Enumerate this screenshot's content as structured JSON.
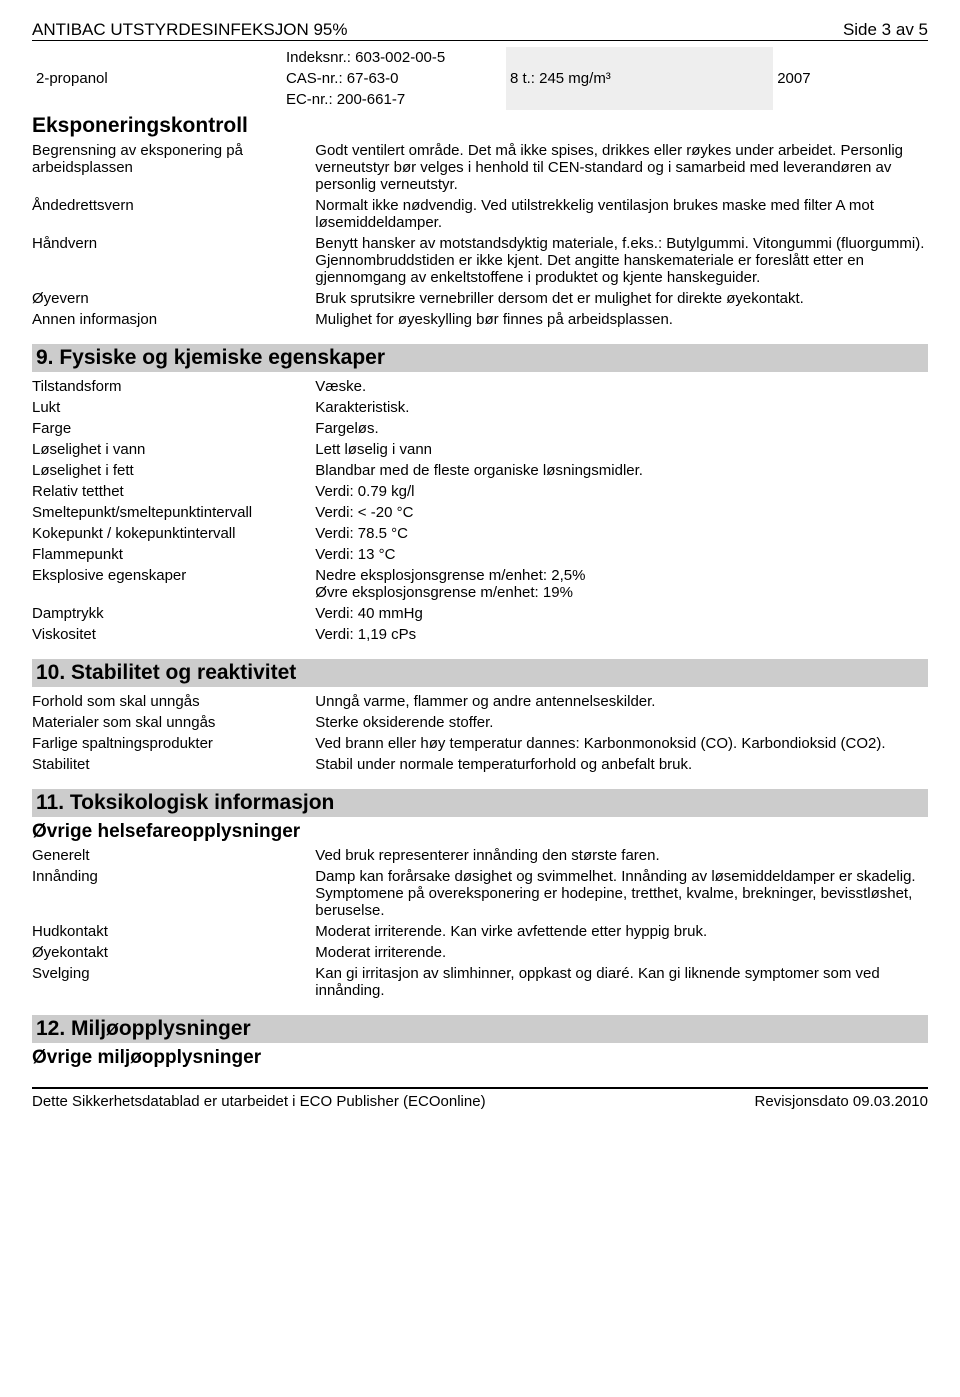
{
  "header": {
    "title": "ANTIBAC UTSTYRDESINFEKSJON 95%",
    "page": "Side 3 av 5"
  },
  "chemical_row": {
    "name": "2-propanol",
    "ids": [
      "Indeksnr.: 603-002-00-5",
      "CAS-nr.: 67-63-0",
      "EC-nr.: 200-661-7"
    ],
    "limit": "8 t.: 245 mg/m³",
    "year": "2007"
  },
  "exposure": {
    "heading": "Eksponeringskontroll",
    "rows": [
      {
        "label": "Begrensning av eksponering på arbeidsplassen",
        "value": "Godt ventilert område. Det må ikke spises, drikkes eller røykes under arbeidet. Personlig verneutstyr bør velges i henhold til CEN-standard og i samarbeid med leverandøren av personlig verneutstyr."
      },
      {
        "label": "Åndedrettsvern",
        "value": "Normalt ikke nødvendig. Ved utilstrekkelig ventilasjon brukes maske med filter A mot løsemiddeldamper."
      },
      {
        "label": "Håndvern",
        "value": "Benytt hansker av motstandsdyktig materiale, f.eks.: Butylgummi. Vitongummi (fluorgummi). Gjennombruddstiden er ikke kjent. Det angitte hanskemateriale er foreslått etter en gjennomgang av enkeltstoffene i produktet og kjente hanskeguider."
      },
      {
        "label": "Øyevern",
        "value": "Bruk sprutsikre vernebriller dersom det er mulighet for direkte øyekontakt."
      },
      {
        "label": "Annen informasjon",
        "value": "Mulighet for øyeskylling bør finnes på arbeidsplassen."
      }
    ]
  },
  "section9": {
    "heading": "9. Fysiske og kjemiske egenskaper",
    "rows": [
      {
        "label": "Tilstandsform",
        "value": "Væske."
      },
      {
        "label": "Lukt",
        "value": "Karakteristisk."
      },
      {
        "label": "Farge",
        "value": "Fargeløs."
      },
      {
        "label": "Løselighet i vann",
        "value": "Lett løselig i vann"
      },
      {
        "label": "Løselighet i fett",
        "value": "Blandbar med de fleste organiske løsningsmidler."
      },
      {
        "label": "Relativ tetthet",
        "value": "Verdi: 0.79 kg/l"
      },
      {
        "label": "Smeltepunkt/smeltepunktintervall",
        "value": "Verdi: < -20 °C"
      },
      {
        "label": "Kokepunkt / kokepunktintervall",
        "value": "Verdi: 78.5 °C"
      },
      {
        "label": "Flammepunkt",
        "value": "Verdi: 13 °C"
      },
      {
        "label": "Eksplosive egenskaper",
        "value": "Nedre eksplosjonsgrense m/enhet: 2,5%\nØvre eksplosjonsgrense m/enhet: 19%"
      },
      {
        "label": "Damptrykk",
        "value": "Verdi: 40 mmHg"
      },
      {
        "label": "Viskositet",
        "value": "Verdi: 1,19 cPs"
      }
    ]
  },
  "section10": {
    "heading": "10. Stabilitet og reaktivitet",
    "rows": [
      {
        "label": "Forhold som skal unngås",
        "value": "Unngå varme, flammer og andre antennelseskilder."
      },
      {
        "label": "Materialer som skal unngås",
        "value": "Sterke oksiderende stoffer."
      },
      {
        "label": "Farlige spaltningsprodukter",
        "value": "Ved brann eller høy temperatur dannes: Karbonmonoksid (CO). Karbondioksid (CO2)."
      },
      {
        "label": "Stabilitet",
        "value": "Stabil under normale temperaturforhold og anbefalt bruk."
      }
    ]
  },
  "section11": {
    "heading": "11. Toksikologisk informasjon",
    "subheading": "Øvrige helsefareopplysninger",
    "rows": [
      {
        "label": "Generelt",
        "value": "Ved bruk representerer innånding den største faren."
      },
      {
        "label": "Innånding",
        "value": "Damp kan forårsake døsighet og svimmelhet. Innånding av løsemiddeldamper er skadelig. Symptomene på overeksponering er hodepine, tretthet, kvalme, brekninger, bevisstløshet, beruselse."
      },
      {
        "label": "Hudkontakt",
        "value": "Moderat irriterende. Kan virke avfettende etter hyppig bruk."
      },
      {
        "label": "Øyekontakt",
        "value": "Moderat irriterende."
      },
      {
        "label": "Svelging",
        "value": "Kan gi irritasjon av slimhinner, oppkast og diaré. Kan gi liknende symptomer som ved innånding."
      }
    ]
  },
  "section12": {
    "heading": "12. Miljøopplysninger",
    "subheading": "Øvrige miljøopplysninger"
  },
  "footer": {
    "left": "Dette Sikkerhetsdatablad er utarbeidet i ECO Publisher (ECOonline)",
    "right": "Revisjonsdato 09.03.2010"
  }
}
